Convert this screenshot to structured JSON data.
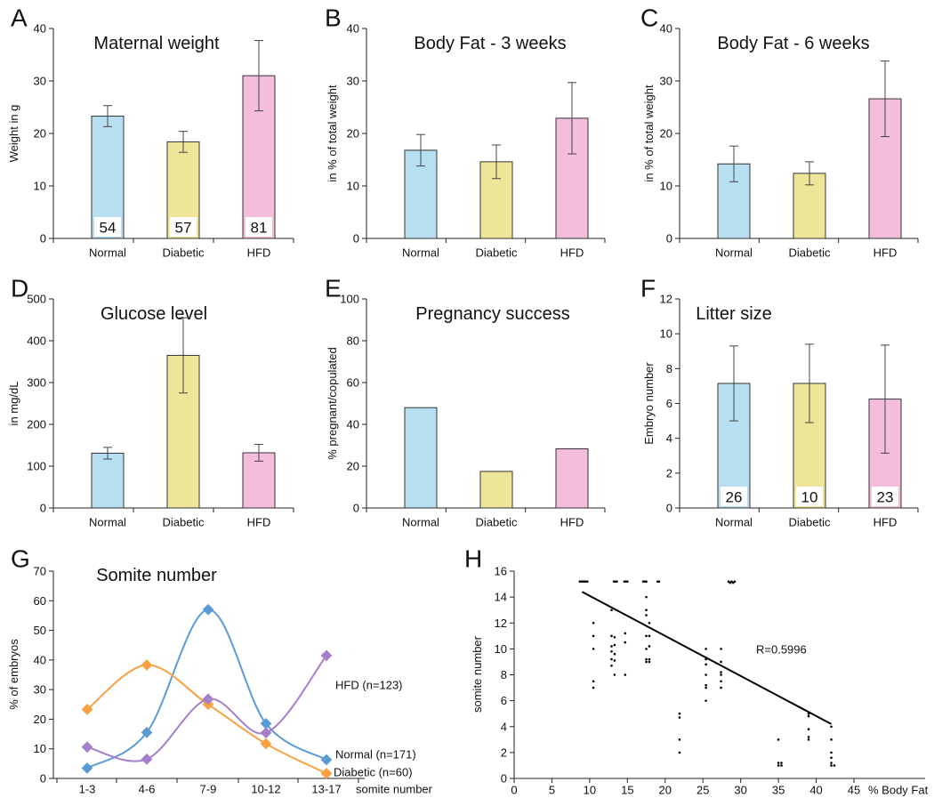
{
  "colors": {
    "blue": "#b7dff1",
    "yellow": "#efe598",
    "pink": "#f4bedb"
  },
  "chart_data": [
    {
      "type": "bar",
      "letter": "A",
      "title": "Maternal weight",
      "xlabel": "",
      "ylabel": "Weight in g",
      "ylim": [
        0,
        40
      ],
      "yticks": [
        0,
        10,
        20,
        30,
        40
      ],
      "categories": [
        "Normal",
        "Diabetic",
        "HFD"
      ],
      "values": [
        23.3,
        18.4,
        31.0
      ],
      "errors": [
        2.0,
        2.0,
        6.7
      ],
      "n_labels": [
        "54",
        "57",
        "81"
      ]
    },
    {
      "type": "bar",
      "letter": "B",
      "title": "Body Fat - 3 weeks",
      "xlabel": "",
      "ylabel": "in % of total weight",
      "ylim": [
        0,
        40
      ],
      "yticks": [
        0,
        10,
        20,
        30,
        40
      ],
      "categories": [
        "Normal",
        "Diabetic",
        "HFD"
      ],
      "values": [
        16.8,
        14.6,
        22.9
      ],
      "errors": [
        3.0,
        3.2,
        6.8
      ]
    },
    {
      "type": "bar",
      "letter": "C",
      "title": "Body Fat - 6 weeks",
      "xlabel": "",
      "ylabel": "in % of total weight",
      "ylim": [
        0,
        40
      ],
      "yticks": [
        0,
        10,
        20,
        30,
        40
      ],
      "categories": [
        "Normal",
        "Diabetic",
        "HFD"
      ],
      "values": [
        14.2,
        12.4,
        26.6
      ],
      "errors": [
        3.4,
        2.2,
        7.2
      ]
    },
    {
      "type": "bar",
      "letter": "D",
      "title": "Glucose level",
      "xlabel": "",
      "ylabel": "in mg/dL",
      "ylim": [
        0,
        500
      ],
      "yticks": [
        0,
        100,
        200,
        300,
        400,
        500
      ],
      "categories": [
        "Normal",
        "Diabetic",
        "HFD"
      ],
      "values": [
        131,
        365,
        132
      ],
      "errors": [
        14,
        90,
        20
      ]
    },
    {
      "type": "bar",
      "letter": "E",
      "title": "Pregnancy success",
      "xlabel": "",
      "ylabel": "% pregnant/copulated",
      "ylim": [
        0,
        100
      ],
      "yticks": [
        0,
        20,
        40,
        60,
        80,
        100
      ],
      "categories": [
        "Normal",
        "Diabetic",
        "HFD"
      ],
      "values": [
        48,
        17.5,
        28.3
      ],
      "errors": [
        0,
        0,
        0
      ]
    },
    {
      "type": "bar",
      "letter": "F",
      "title": "Litter size",
      "xlabel": "",
      "ylabel": "Embryo number",
      "ylim": [
        0,
        12
      ],
      "yticks": [
        0,
        2,
        4,
        6,
        8,
        10,
        12
      ],
      "categories": [
        "Normal",
        "Diabetic",
        "HFD"
      ],
      "values": [
        7.15,
        7.15,
        6.25
      ],
      "errors": [
        2.15,
        2.25,
        3.1
      ],
      "n_labels": [
        "26",
        "10",
        "23"
      ]
    },
    {
      "type": "line",
      "letter": "G",
      "title": "Somite number",
      "xlabel": "somite number",
      "ylabel": "% of embryos",
      "ylim": [
        0,
        70
      ],
      "yticks": [
        0,
        10,
        20,
        30,
        40,
        50,
        60,
        70
      ],
      "categories": [
        "1-3",
        "4-6",
        "7-9",
        "10-12",
        "13-17"
      ],
      "series": [
        {
          "name": "Normal (n=171)",
          "color": "#5b9bd5",
          "values": [
            3.5,
            15.5,
            57,
            18.5,
            6.3
          ]
        },
        {
          "name": "Diabetic (n=60)",
          "color": "#f9a040",
          "values": [
            23.3,
            38.3,
            25,
            11.7,
            1.7
          ]
        },
        {
          "name": "HFD (n=123)",
          "color": "#a57fcc",
          "values": [
            10.6,
            6.5,
            26.8,
            15.4,
            41.5
          ]
        }
      ]
    },
    {
      "type": "scatter",
      "letter": "H",
      "title": "",
      "xlabel": "% Body Fat",
      "ylabel": "somite number",
      "xlim": [
        0,
        45
      ],
      "ylim": [
        0,
        16
      ],
      "xticks": [
        0,
        5,
        10,
        15,
        20,
        25,
        30,
        35,
        40,
        45
      ],
      "yticks": [
        0,
        2,
        4,
        6,
        8,
        10,
        12,
        14,
        16
      ],
      "annotation": "R=0.5996",
      "trendline": {
        "x": [
          9,
          42
        ],
        "y": [
          14.4,
          4.2
        ]
      },
      "points": [
        [
          8.7,
          15.2
        ],
        [
          8.9,
          15.2
        ],
        [
          9.1,
          15.2
        ],
        [
          9.3,
          15.2
        ],
        [
          9.5,
          15.2
        ],
        [
          9.7,
          15.2
        ],
        [
          13.2,
          15.2
        ],
        [
          13.4,
          15.2
        ],
        [
          13.6,
          15.2
        ],
        [
          14.6,
          15.2
        ],
        [
          14.8,
          15.2
        ],
        [
          15,
          15.2
        ],
        [
          17.1,
          15.2
        ],
        [
          17.3,
          15.2
        ],
        [
          17.5,
          15.2
        ],
        [
          19,
          15.2
        ],
        [
          19.2,
          15.2
        ],
        [
          28.4,
          15.2
        ],
        [
          28.6,
          15.1
        ],
        [
          28.8,
          15.2
        ],
        [
          29,
          15.1
        ],
        [
          29.2,
          15.2
        ],
        [
          10.5,
          12
        ],
        [
          10.5,
          11
        ],
        [
          10.5,
          10
        ],
        [
          10.5,
          7.5
        ],
        [
          10.5,
          7
        ],
        [
          12.9,
          13
        ],
        [
          12.9,
          11
        ],
        [
          12.9,
          10.2
        ],
        [
          12.9,
          9.8
        ],
        [
          12.9,
          9.2
        ],
        [
          12.9,
          8.7
        ],
        [
          13.3,
          10.9
        ],
        [
          13.3,
          10.3
        ],
        [
          13.3,
          9.6
        ],
        [
          13.3,
          9.1
        ],
        [
          13.3,
          8
        ],
        [
          14.7,
          11.2
        ],
        [
          14.7,
          10.5
        ],
        [
          14.7,
          8
        ],
        [
          17.5,
          14
        ],
        [
          17.5,
          13
        ],
        [
          17.5,
          12.6
        ],
        [
          17.5,
          11
        ],
        [
          17.5,
          10
        ],
        [
          17.5,
          9.2
        ],
        [
          17.5,
          9
        ],
        [
          17.9,
          12
        ],
        [
          17.9,
          11
        ],
        [
          17.9,
          10.2
        ],
        [
          17.9,
          9.2
        ],
        [
          17.9,
          9
        ],
        [
          21.9,
          5
        ],
        [
          21.9,
          4.7
        ],
        [
          21.9,
          3
        ],
        [
          21.9,
          2
        ],
        [
          25.4,
          10
        ],
        [
          25.4,
          9.2
        ],
        [
          25.4,
          8.8
        ],
        [
          25.4,
          8
        ],
        [
          25.4,
          7.2
        ],
        [
          25.4,
          7
        ],
        [
          25.4,
          6
        ],
        [
          27.4,
          10
        ],
        [
          27.4,
          9
        ],
        [
          27.4,
          8.2
        ],
        [
          27.4,
          8
        ],
        [
          27.4,
          7.5
        ],
        [
          27.4,
          7
        ],
        [
          35,
          3
        ],
        [
          35,
          1.2
        ],
        [
          35,
          1
        ],
        [
          35.4,
          1.2
        ],
        [
          35.4,
          1
        ],
        [
          39,
          5
        ],
        [
          39,
          4.8
        ],
        [
          39,
          3.8
        ],
        [
          39,
          3.2
        ],
        [
          39,
          3
        ],
        [
          42,
          4
        ],
        [
          42,
          3
        ],
        [
          42,
          2
        ],
        [
          42,
          1.6
        ],
        [
          42,
          1.2
        ],
        [
          42,
          1
        ],
        [
          42.4,
          1
        ]
      ]
    }
  ]
}
